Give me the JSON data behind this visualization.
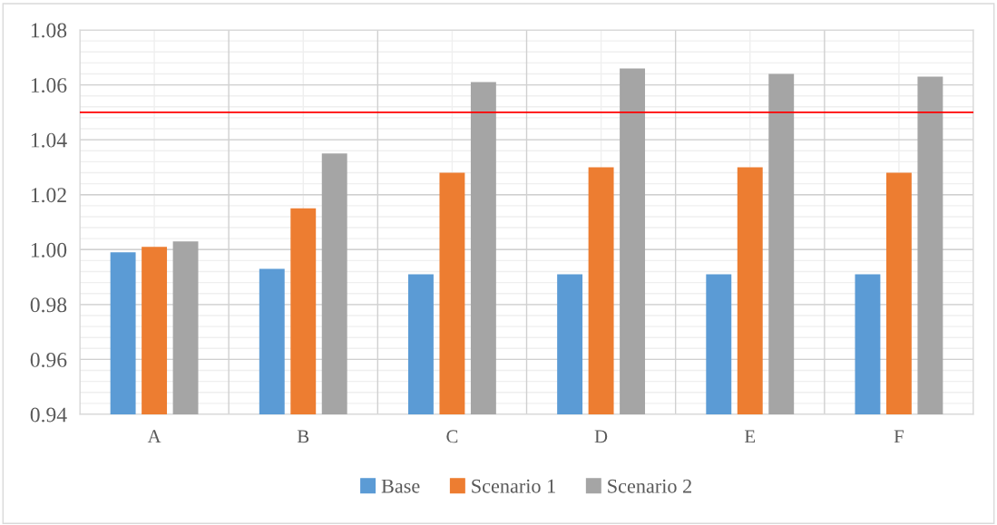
{
  "chart_data": {
    "type": "bar",
    "categories": [
      "A",
      "B",
      "C",
      "D",
      "E",
      "F"
    ],
    "series": [
      {
        "name": "Base",
        "color": "#5b9bd5",
        "values": [
          0.999,
          0.993,
          0.991,
          0.991,
          0.991,
          0.991
        ]
      },
      {
        "name": "Scenario 1",
        "color": "#ed7d31",
        "values": [
          1.001,
          1.015,
          1.028,
          1.03,
          1.03,
          1.028
        ]
      },
      {
        "name": "Scenario 2",
        "color": "#a5a5a5",
        "values": [
          1.003,
          1.035,
          1.061,
          1.066,
          1.064,
          1.063
        ]
      }
    ],
    "ylim": [
      0.94,
      1.08
    ],
    "yticks": [
      {
        "value": 0.94,
        "label": "0.94"
      },
      {
        "value": 0.96,
        "label": "0.96"
      },
      {
        "value": 0.98,
        "label": "0.98"
      },
      {
        "value": 1.0,
        "label": "1.00"
      },
      {
        "value": 1.02,
        "label": "1.02"
      },
      {
        "value": 1.04,
        "label": "1.04"
      },
      {
        "value": 1.06,
        "label": "1.06"
      },
      {
        "value": 1.08,
        "label": "1.08"
      }
    ],
    "ref_lines": [
      {
        "axis": "y",
        "value": 1.05,
        "color": "#ff0000"
      }
    ],
    "grid": true,
    "legend": "bottom"
  }
}
